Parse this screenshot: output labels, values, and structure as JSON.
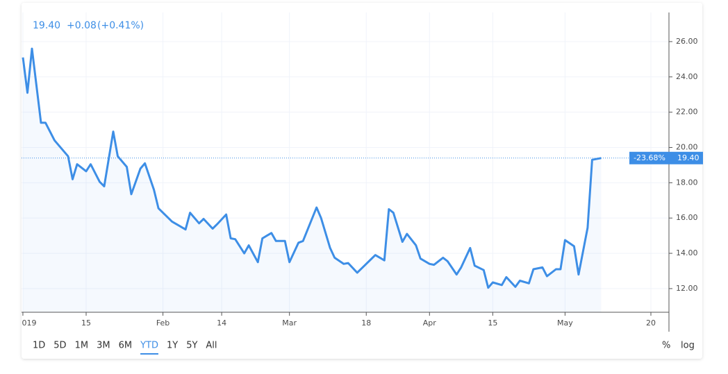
{
  "chart_data": {
    "type": "line",
    "header": {
      "price": "19.40",
      "change": "+0.08",
      "change_pct": "(+0.41%)"
    },
    "color": "#3d8ee6",
    "x": [
      0,
      1,
      2,
      4,
      5,
      7,
      10,
      11,
      12,
      14,
      15,
      17,
      18,
      20,
      21,
      23,
      24,
      26,
      27,
      29,
      30,
      33,
      36,
      37,
      39,
      40,
      42,
      43,
      45,
      46,
      47,
      49,
      50,
      52,
      53,
      55,
      56,
      58,
      59,
      61,
      62,
      65,
      66,
      68,
      69,
      71,
      72,
      74,
      75,
      77,
      78,
      80,
      81,
      82,
      84,
      85,
      87,
      88,
      90,
      91,
      93,
      94,
      96,
      97,
      99,
      100,
      102,
      103,
      104,
      106,
      107,
      109,
      110,
      112,
      113,
      115,
      116,
      118,
      119,
      120,
      122,
      123,
      125,
      126,
      128
    ],
    "values": [
      25.1,
      23.1,
      25.6,
      21.4,
      21.4,
      20.4,
      19.5,
      18.2,
      19.05,
      18.65,
      19.05,
      18.05,
      17.8,
      20.9,
      19.5,
      18.9,
      17.35,
      18.8,
      19.1,
      17.6,
      16.55,
      15.8,
      15.35,
      16.3,
      15.7,
      15.95,
      15.4,
      15.65,
      16.2,
      14.85,
      14.8,
      14.0,
      14.45,
      13.5,
      14.85,
      15.15,
      14.7,
      14.7,
      13.5,
      14.6,
      14.7,
      16.6,
      16.0,
      14.3,
      13.75,
      13.4,
      13.45,
      12.9,
      13.15,
      13.65,
      13.9,
      13.6,
      16.5,
      16.3,
      14.65,
      15.1,
      14.45,
      13.7,
      13.4,
      13.35,
      13.75,
      13.55,
      12.8,
      13.2,
      14.3,
      13.3,
      13.05,
      12.05,
      12.35,
      12.2,
      12.65,
      12.1,
      12.45,
      12.3,
      13.1,
      13.2,
      12.7,
      13.1,
      13.1,
      14.75,
      14.4,
      12.8,
      15.45,
      19.3,
      19.4
    ],
    "xlim": [
      -0.3,
      143
    ],
    "xticks": [
      {
        "value": 0,
        "label": "019"
      },
      {
        "value": 14,
        "label": "15"
      },
      {
        "value": 31,
        "label": "Feb"
      },
      {
        "value": 44,
        "label": "14"
      },
      {
        "value": 59,
        "label": "Mar"
      },
      {
        "value": 76,
        "label": "18"
      },
      {
        "value": 90,
        "label": "Apr"
      },
      {
        "value": 104,
        "label": "15"
      },
      {
        "value": 120,
        "label": "May"
      },
      {
        "value": 139,
        "label": "20"
      }
    ],
    "ylim": [
      10.66,
      27.65
    ],
    "yticks": [
      {
        "value": 12,
        "label": "12.00"
      },
      {
        "value": 14,
        "label": "14.00"
      },
      {
        "value": 16,
        "label": "16.00"
      },
      {
        "value": 18,
        "label": "18.00"
      },
      {
        "value": 20,
        "label": "20.00"
      },
      {
        "value": 22,
        "label": "22.00"
      },
      {
        "value": 24,
        "label": "24.00"
      },
      {
        "value": 26,
        "label": "26.00"
      }
    ],
    "grid": true,
    "last_value": 19.4,
    "last_label": "19.40",
    "last_change_label": "-23.68%",
    "ranges": [
      "1D",
      "5D",
      "1M",
      "3M",
      "6M",
      "YTD",
      "1Y",
      "5Y",
      "All"
    ],
    "selected_range": 5,
    "scale_buttons": [
      "%",
      "log"
    ]
  }
}
